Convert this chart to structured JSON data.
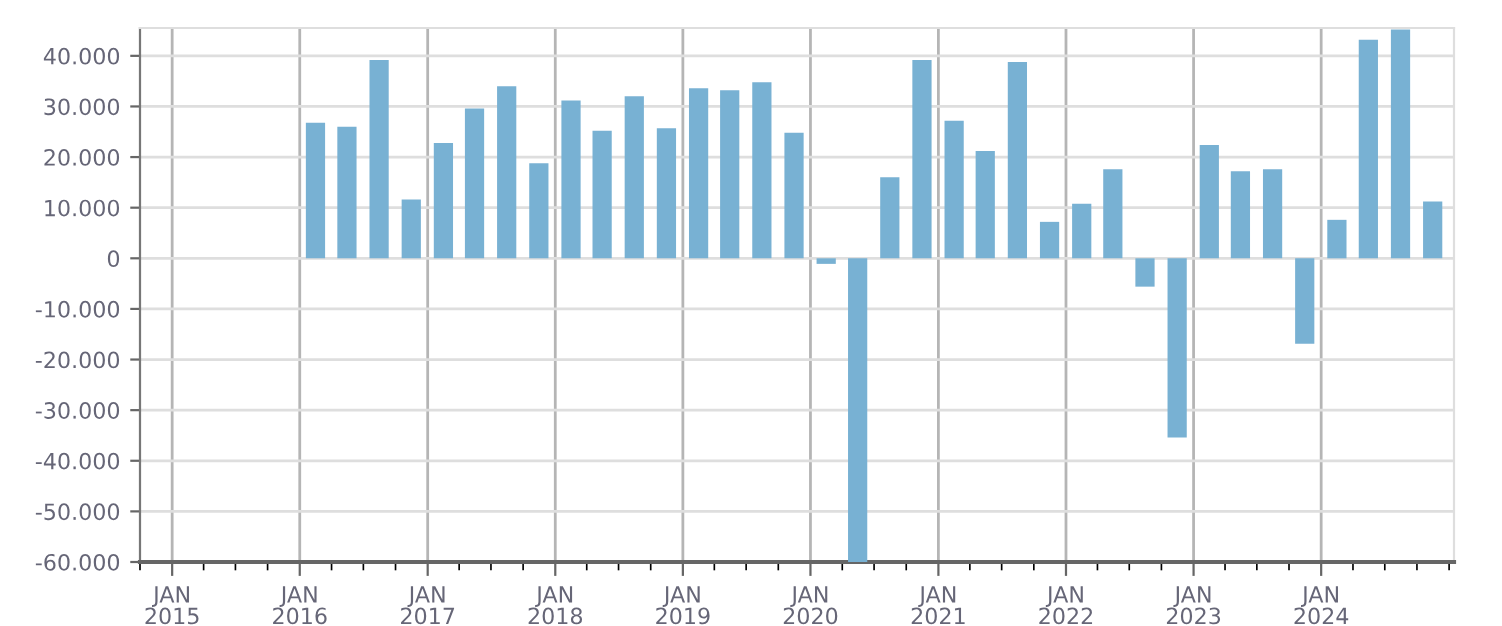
{
  "chart_data": {
    "type": "bar",
    "x": [
      "2016-02-15",
      "2016-05-15",
      "2016-08-15",
      "2016-11-15",
      "2017-02-15",
      "2017-05-15",
      "2017-08-15",
      "2017-11-15",
      "2018-02-15",
      "2018-05-15",
      "2018-08-15",
      "2018-11-15",
      "2019-02-15",
      "2019-05-15",
      "2019-08-15",
      "2019-11-15",
      "2020-02-15",
      "2020-05-15",
      "2020-08-15",
      "2020-11-15",
      "2021-02-15",
      "2021-05-15",
      "2021-08-15",
      "2021-11-15",
      "2022-02-15",
      "2022-05-15",
      "2022-08-15",
      "2022-11-15",
      "2023-02-15",
      "2023-05-15",
      "2023-08-15",
      "2023-11-15",
      "2024-02-15",
      "2024-05-15",
      "2024-08-15",
      "2024-11-15"
    ],
    "values": [
      26800,
      26000,
      39200,
      11600,
      22800,
      29600,
      34000,
      18800,
      31200,
      25200,
      32000,
      25700,
      33600,
      33200,
      34800,
      24800,
      -1100,
      -60000,
      16000,
      39200,
      27200,
      21200,
      38800,
      7200,
      10800,
      17600,
      -5600,
      -35400,
      22400,
      17200,
      17600,
      -16900,
      7600,
      43200,
      45200,
      11200
    ],
    "color": "#78b1d3",
    "xlim": [
      "2014-10-01",
      "2025-01-15"
    ],
    "xticks": [
      {
        "value": "2015-01-01",
        "label": "JAN\n2015"
      },
      {
        "value": "2016-01-01",
        "label": "JAN\n2016"
      },
      {
        "value": "2017-01-01",
        "label": "JAN\n2017"
      },
      {
        "value": "2018-01-01",
        "label": "JAN\n2018"
      },
      {
        "value": "2019-01-01",
        "label": "JAN\n2019"
      },
      {
        "value": "2020-01-01",
        "label": "JAN\n2020"
      },
      {
        "value": "2021-01-01",
        "label": "JAN\n2021"
      },
      {
        "value": "2022-01-01",
        "label": "JAN\n2022"
      },
      {
        "value": "2023-01-01",
        "label": "JAN\n2023"
      },
      {
        "value": "2024-01-01",
        "label": "JAN\n2024"
      }
    ],
    "ylim": [
      -60000,
      45500
    ],
    "yticks": [
      {
        "value": -60000,
        "label": "-60.000"
      },
      {
        "value": -50000,
        "label": "-50.000"
      },
      {
        "value": -40000,
        "label": "-40.000"
      },
      {
        "value": -30000,
        "label": "-30.000"
      },
      {
        "value": -20000,
        "label": "-20.000"
      },
      {
        "value": -10000,
        "label": "-10.000"
      },
      0,
      {
        "value": 10000,
        "label": "10.000"
      },
      {
        "value": 20000,
        "label": "20.000"
      },
      {
        "value": 30000,
        "label": "30.000"
      },
      {
        "value": 40000,
        "label": "40.000"
      }
    ],
    "grid": true
  }
}
